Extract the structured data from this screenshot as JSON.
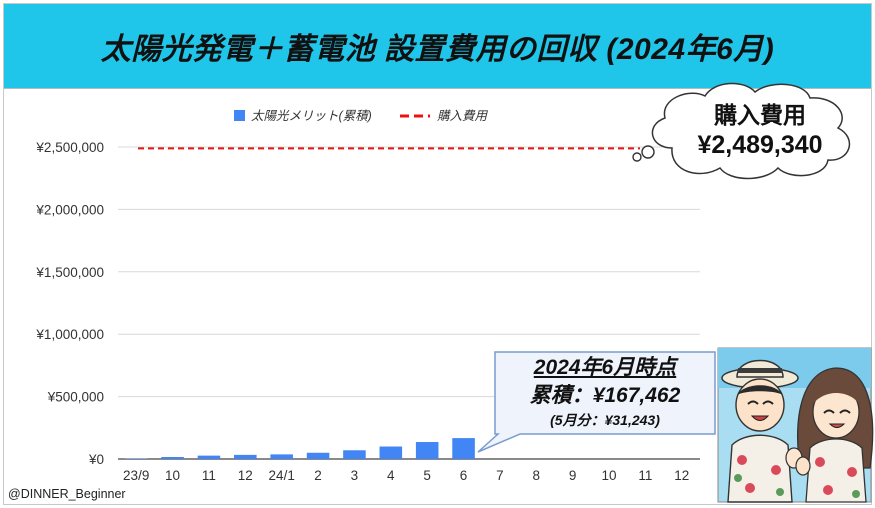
{
  "title": "太陽光発電＋蓄電池 設置費用の回収 (2024年6月)",
  "credit": "@DINNER_Beginner",
  "cloud": {
    "line1": "購入費用",
    "line2": "¥2,489,340"
  },
  "callout": {
    "line1": "2024年6月時点",
    "line2": "累積：¥167,462",
    "line3": "(5月分：¥31,243)"
  },
  "colors": {
    "title_bg": "#1fc6ea",
    "bar": "#4285f4",
    "purchase_line": "#ee1111",
    "callout_bg": "#eef3fc",
    "callout_border": "#7a9ccf"
  },
  "chart_data": {
    "type": "bar",
    "categories": [
      "23/9",
      "10",
      "11",
      "12",
      "24/1",
      "2",
      "3",
      "4",
      "5",
      "6",
      "7",
      "8",
      "9",
      "10",
      "11",
      "12"
    ],
    "series": [
      {
        "name": "太陽光メリット(累積)",
        "type": "bar",
        "values": [
          4000,
          16000,
          27000,
          33000,
          37000,
          50000,
          70000,
          100000,
          136000,
          167462,
          null,
          null,
          null,
          null,
          null,
          null
        ]
      },
      {
        "name": "購入費用",
        "type": "line-dashed",
        "value": 2489340
      }
    ],
    "yticks": [
      "¥0",
      "¥500,000",
      "¥1,000,000",
      "¥1,500,000",
      "¥2,000,000",
      "¥2,500,000"
    ],
    "ylim": [
      0,
      2500000
    ],
    "grid": true,
    "legend": "top-center"
  }
}
